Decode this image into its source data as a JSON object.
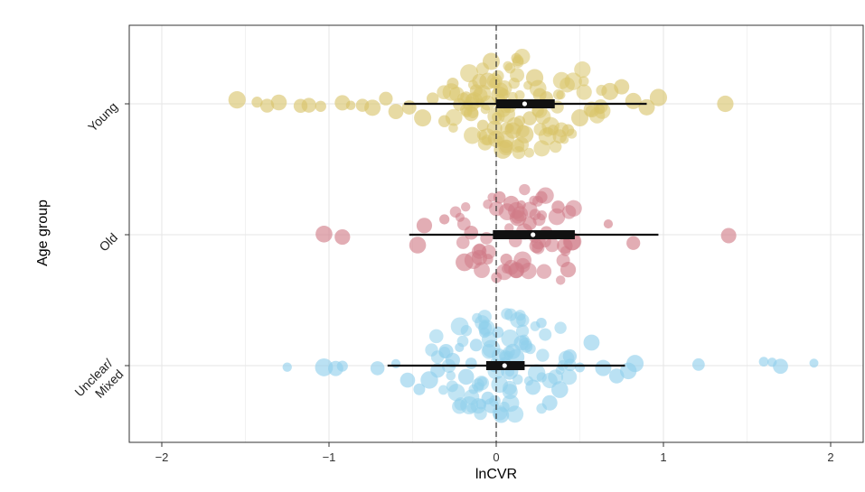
{
  "chart_data": {
    "type": "scatter",
    "subtype": "orchard/beeswarm plot with median point, interquartile bar and confidence interval",
    "xlabel": "lnCVR",
    "ylabel": "Age group",
    "xlim": [
      -2.2,
      2.2
    ],
    "x_ticks": [
      -2,
      -1,
      0,
      1,
      2
    ],
    "x_tick_labels": [
      "−2",
      "−1",
      "0",
      "1",
      "2"
    ],
    "reference_line_x": 0,
    "grid": true,
    "legend": "none",
    "categories": [
      {
        "label": "Young",
        "color": "#D9C46A",
        "median": 0.17,
        "box": [
          0.0,
          0.35
        ],
        "ci": [
          -0.55,
          0.9
        ]
      },
      {
        "label": "Old",
        "color": "#D07A86",
        "median": 0.22,
        "box": [
          -0.02,
          0.47
        ],
        "ci": [
          -0.52,
          0.97
        ]
      },
      {
        "label": "Unclear/\nMixed",
        "color": "#8FCFEB",
        "median": 0.05,
        "box": [
          -0.06,
          0.17
        ],
        "ci": [
          -0.65,
          0.77
        ]
      }
    ],
    "points": [
      {
        "group": "Young",
        "x": [
          -1.55,
          -1.43,
          -1.37,
          -1.3,
          -1.17,
          -1.12,
          -1.05,
          -0.92,
          -0.87,
          -0.8,
          -0.74,
          -0.66,
          -0.6,
          -0.52,
          -0.44,
          -0.38,
          -0.31,
          -0.26,
          -0.22,
          -0.18,
          -0.15,
          -0.12,
          -0.1,
          -0.08,
          -0.05,
          -0.03,
          -0.01,
          0.0,
          0.02,
          0.04,
          0.06,
          0.08,
          0.1,
          0.12,
          0.14,
          0.17,
          0.2,
          0.23,
          0.26,
          0.3,
          0.34,
          0.38,
          0.43,
          0.5,
          0.57,
          0.62,
          0.68,
          0.75,
          0.82,
          0.9,
          0.97,
          1.37
        ]
      },
      {
        "group": "Old",
        "x": [
          -1.03,
          -0.92,
          -0.47,
          -0.43,
          -0.31,
          -0.19,
          -0.15,
          -0.1,
          -0.05,
          0.02,
          0.06,
          0.09,
          0.12,
          0.13,
          0.15,
          0.2,
          0.24,
          0.27,
          0.3,
          0.37,
          0.41,
          0.43,
          0.67,
          0.82,
          1.39
        ]
      },
      {
        "group": "Unclear/\nMixed",
        "x": [
          -1.25,
          -1.03,
          -0.96,
          -0.92,
          -0.71,
          -0.6,
          -0.53,
          -0.46,
          -0.4,
          -0.35,
          -0.3,
          -0.26,
          -0.22,
          -0.18,
          -0.15,
          -0.12,
          -0.09,
          -0.07,
          -0.05,
          -0.03,
          -0.01,
          0.01,
          0.03,
          0.05,
          0.08,
          0.1,
          0.12,
          0.15,
          0.18,
          0.22,
          0.27,
          0.32,
          0.38,
          0.44,
          0.5,
          0.57,
          0.64,
          0.72,
          0.79,
          0.83,
          1.21,
          1.6,
          1.65,
          1.7,
          1.9
        ]
      }
    ]
  }
}
